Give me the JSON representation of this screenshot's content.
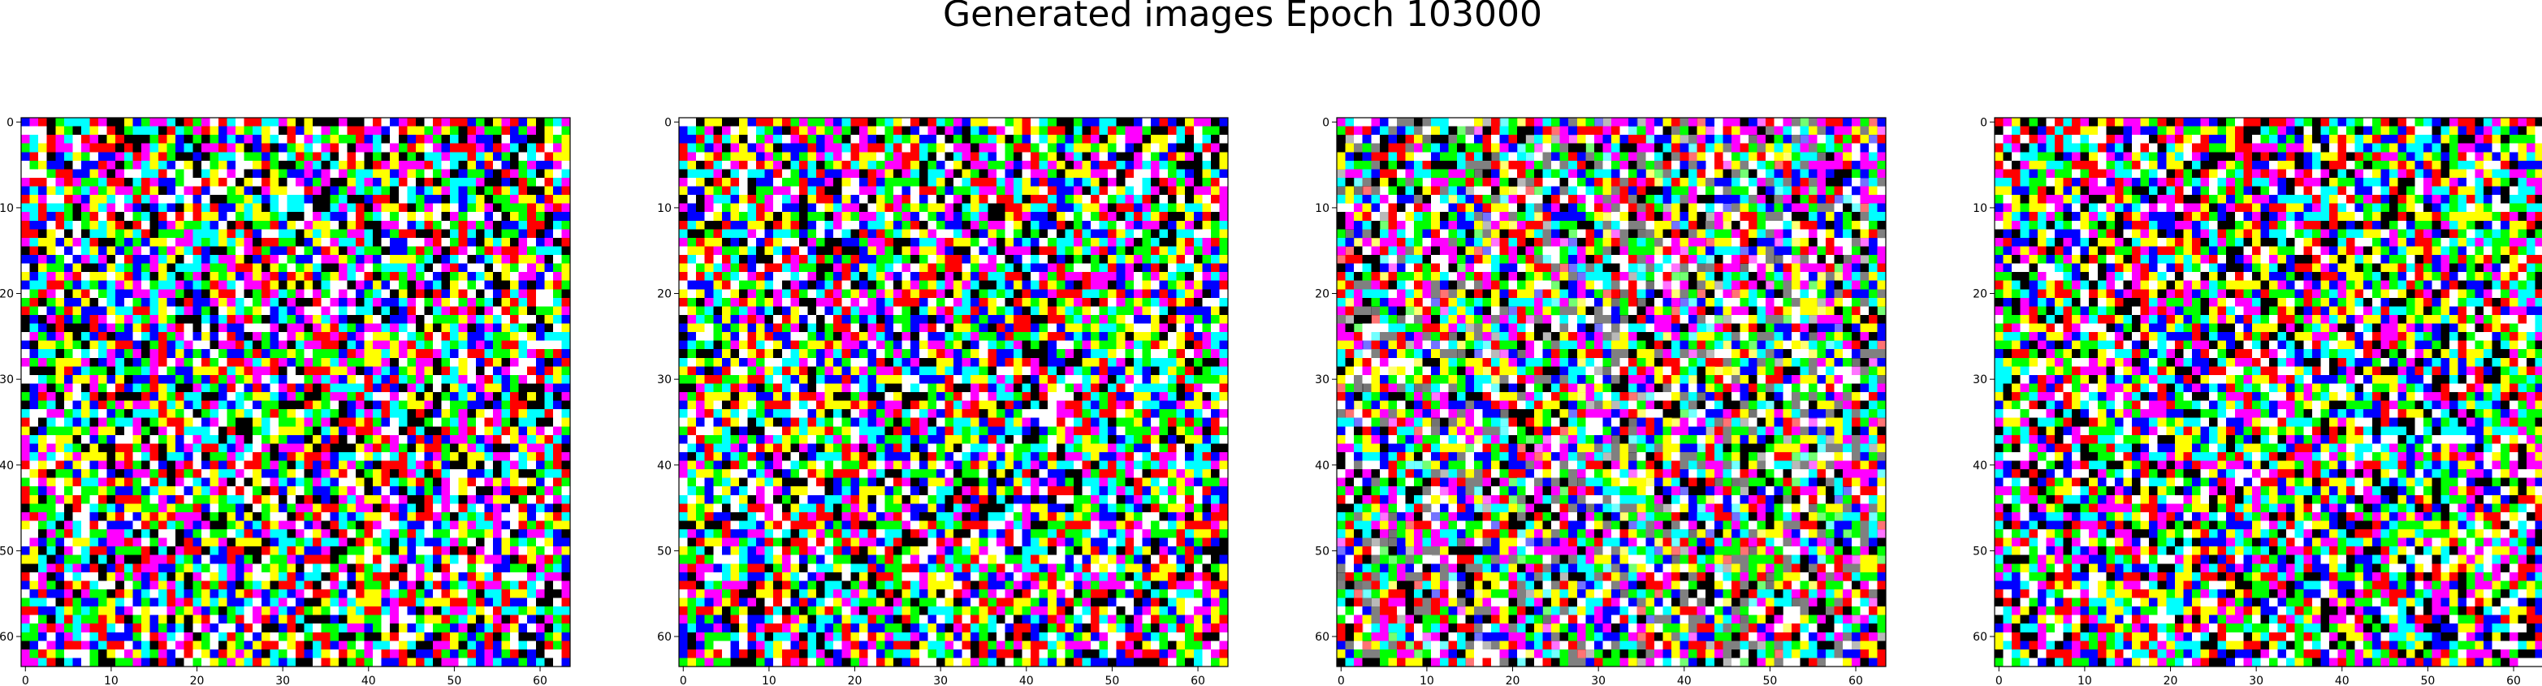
{
  "figure": {
    "suptitle": "Generated images Epoch 103000",
    "background": "#ffffff"
  },
  "chart_data": [
    {
      "type": "heatmap",
      "subtype": "rgb-image",
      "title": "",
      "xlabel": "",
      "ylabel": "",
      "grid_size": [
        64,
        64
      ],
      "xlim": [
        -0.5,
        63.5
      ],
      "ylim": [
        63.5,
        -0.5
      ],
      "xticks": [
        0,
        10,
        20,
        30,
        40,
        50,
        60
      ],
      "yticks": [
        0,
        10,
        20,
        30,
        40,
        50,
        60
      ],
      "grid": false,
      "palette": [
        "#ff0000",
        "#00ff00",
        "#0000ff",
        "#ffff00",
        "#ff00ff",
        "#00ffff",
        "#000000",
        "#ffffff"
      ],
      "content": "random RGB noise"
    },
    {
      "type": "heatmap",
      "subtype": "rgb-image",
      "title": "",
      "xlabel": "",
      "ylabel": "",
      "grid_size": [
        64,
        64
      ],
      "xlim": [
        -0.5,
        63.5
      ],
      "ylim": [
        63.5,
        -0.5
      ],
      "xticks": [
        0,
        10,
        20,
        30,
        40,
        50,
        60
      ],
      "yticks": [
        0,
        10,
        20,
        30,
        40,
        50,
        60
      ],
      "grid": false,
      "palette": [
        "#ff0000",
        "#00ff00",
        "#0000ff",
        "#ffff00",
        "#ff00ff",
        "#00ffff",
        "#000000",
        "#ffffff"
      ],
      "content": "random RGB noise"
    },
    {
      "type": "heatmap",
      "subtype": "rgb-image",
      "title": "",
      "xlabel": "",
      "ylabel": "",
      "grid_size": [
        64,
        64
      ],
      "xlim": [
        -0.5,
        63.5
      ],
      "ylim": [
        63.5,
        -0.5
      ],
      "xticks": [
        0,
        10,
        20,
        30,
        40,
        50,
        60
      ],
      "yticks": [
        0,
        10,
        20,
        30,
        40,
        50,
        60
      ],
      "grid": false,
      "palette": [
        "#ff0000",
        "#00ff00",
        "#0000ff",
        "#ffff00",
        "#ff00ff",
        "#00ffff",
        "#000000",
        "#ffffff",
        "#808080"
      ],
      "content": "random RGB noise with slightly muted grey patches"
    },
    {
      "type": "heatmap",
      "subtype": "rgb-image",
      "title": "",
      "xlabel": "",
      "ylabel": "",
      "grid_size": [
        64,
        64
      ],
      "xlim": [
        -0.5,
        63.5
      ],
      "ylim": [
        63.5,
        -0.5
      ],
      "xticks": [
        0,
        10,
        20,
        30,
        40,
        50,
        60
      ],
      "yticks": [
        0,
        10,
        20,
        30,
        40,
        50,
        60
      ],
      "grid": false,
      "palette": [
        "#ff0000",
        "#00ff00",
        "#0000ff",
        "#ffff00",
        "#ff00ff",
        "#00ffff",
        "#000000",
        "#ffffff"
      ],
      "content": "random RGB noise"
    }
  ]
}
